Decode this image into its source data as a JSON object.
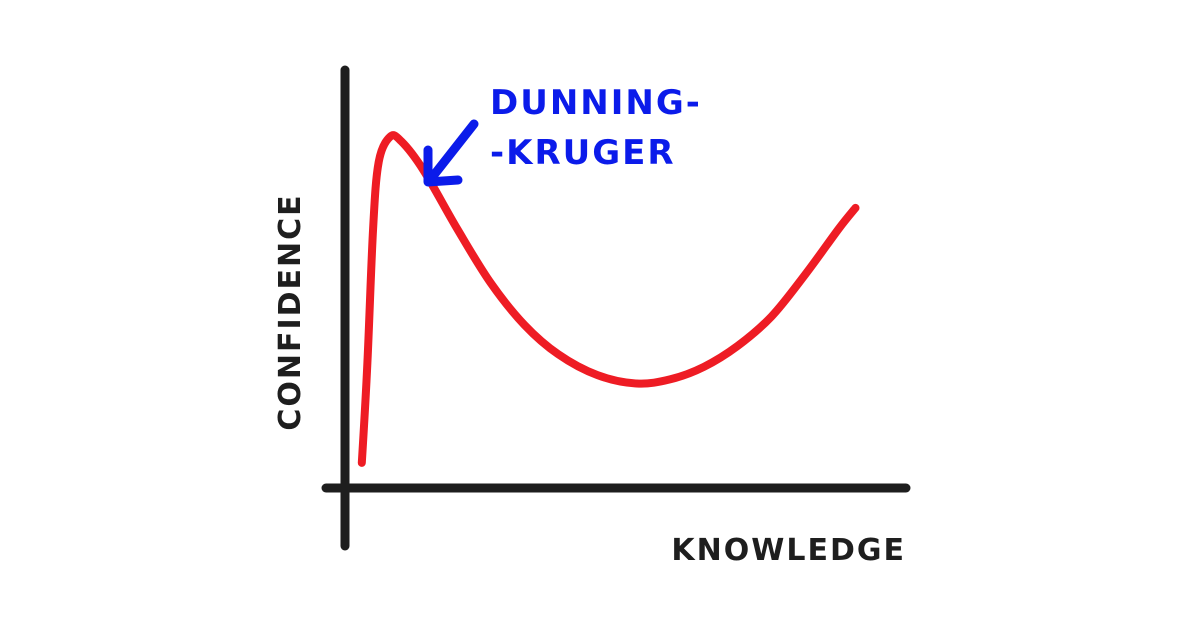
{
  "chart_data": {
    "type": "line",
    "xlabel": "KNOWLEDGE",
    "ylabel": "CONFIDENCE",
    "xlim": [
      0,
      100
    ],
    "ylim": [
      0,
      100
    ],
    "grid": false,
    "series": [
      {
        "color": "#ee1c24",
        "points": [
          {
            "x": 3,
            "y": 6
          },
          {
            "x": 4,
            "y": 30
          },
          {
            "x": 5,
            "y": 62
          },
          {
            "x": 6,
            "y": 78
          },
          {
            "x": 8,
            "y": 84
          },
          {
            "x": 10,
            "y": 83
          },
          {
            "x": 14,
            "y": 76
          },
          {
            "x": 20,
            "y": 62
          },
          {
            "x": 26,
            "y": 49
          },
          {
            "x": 32,
            "y": 39
          },
          {
            "x": 38,
            "y": 32
          },
          {
            "x": 45,
            "y": 27
          },
          {
            "x": 52,
            "y": 25
          },
          {
            "x": 58,
            "y": 26
          },
          {
            "x": 64,
            "y": 29
          },
          {
            "x": 70,
            "y": 34
          },
          {
            "x": 76,
            "y": 41
          },
          {
            "x": 82,
            "y": 51
          },
          {
            "x": 88,
            "y": 62
          },
          {
            "x": 91,
            "y": 67
          }
        ]
      }
    ],
    "annotation": {
      "lines": [
        "DUNNING-",
        "-KRUGER"
      ],
      "color": "#0b1bea",
      "arrow_target": {
        "x": 7.5,
        "y": 86
      }
    }
  },
  "colors": {
    "axis": "#1e1e1e",
    "curve": "#ee1c24",
    "annotation": "#0b1bea"
  }
}
